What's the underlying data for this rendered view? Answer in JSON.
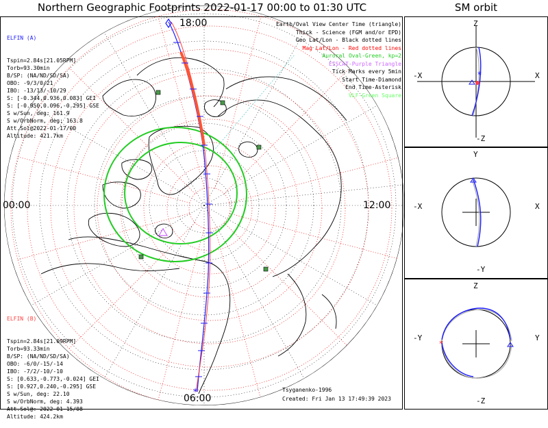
{
  "title": "Northern Geographic Footprints 2022-01-17 00:00 to 01:30 UTC",
  "orbit_title": "SM orbit",
  "map": {
    "lt_top": "18:00",
    "lt_left": "00:00",
    "lt_right": "12:00",
    "lt_bottom": "06:00",
    "credit": "Tsyganenko-1996",
    "created": "Created: Fri Jan 13 17:49:39 2023"
  },
  "elfin_a": {
    "title": "ELFIN (A)",
    "color": "#1a1aff",
    "lines": [
      "Tspin=2.84s[21.05RPM]",
      "Torb=93.30min",
      "B/SP: (NA/ND/SD/SA)",
      "OBO: -9/3/0/21",
      "IBO: -13/13/-10/29",
      "S: [-0.344,0.936,0.083] GEI",
      "S: [-0.950,0.096,-0.295] GSE",
      "S w/Sun, deg: 161.9",
      "S w/OrbNorm, deg: 163.8",
      "Att.Sol@2022-01-17/00",
      "Altitude: 421.7km"
    ]
  },
  "elfin_b": {
    "title": "ELFIN (B)",
    "color": "#ff4040",
    "lines": [
      "Tspin=2.84s[21.09RPM]",
      "Torb=93.33min",
      "B/SP: (NA/ND/SD/SA)",
      "OBO: -6/0/-15/-14",
      "IBO: -7/2/-10/-10",
      "S: [0.633,-0.773,-0.024] GEI",
      "S: [0.927,0.240,-0.295] GSE",
      "S w/Sun, deg: 22.10",
      "S w/OrbNorm, deg: 4.393",
      "Att.Sol@: 2022-01-15/08",
      "Altitude: 424.2km"
    ]
  },
  "legend": [
    {
      "text": "Earth/Oval View Center Time (triangle)",
      "color": "#000000"
    },
    {
      "text": "Thick - Science (FGM and/or EPD)",
      "color": "#000000"
    },
    {
      "text": "Geo Lat/Lon - Black dotted lines",
      "color": "#000000"
    },
    {
      "text": "Mag Lat/Lon - Red dotted lines",
      "color": "#ff0000"
    },
    {
      "text": "Auroral Oval-Green, kp=2",
      "color": "#22cc22"
    },
    {
      "text": "EISCAT-Purple Triangle",
      "color": "#cc66ff"
    },
    {
      "text": "Tick Marks every 5min",
      "color": "#000000"
    },
    {
      "text": "Start Time-Diamond",
      "color": "#000000"
    },
    {
      "text": "End Time-Asterisk",
      "color": "#000000"
    },
    {
      "text": "VLF-Green Square",
      "color": "#66ff66"
    }
  ],
  "orbit_panels": [
    {
      "top": "Z",
      "bottom": "-Z",
      "left": "-X",
      "right": "X"
    },
    {
      "top": "Y",
      "bottom": "-Y",
      "left": "-X",
      "right": "X"
    },
    {
      "top": "Z",
      "bottom": "-Z",
      "left": "-Y",
      "right": "Y"
    }
  ]
}
